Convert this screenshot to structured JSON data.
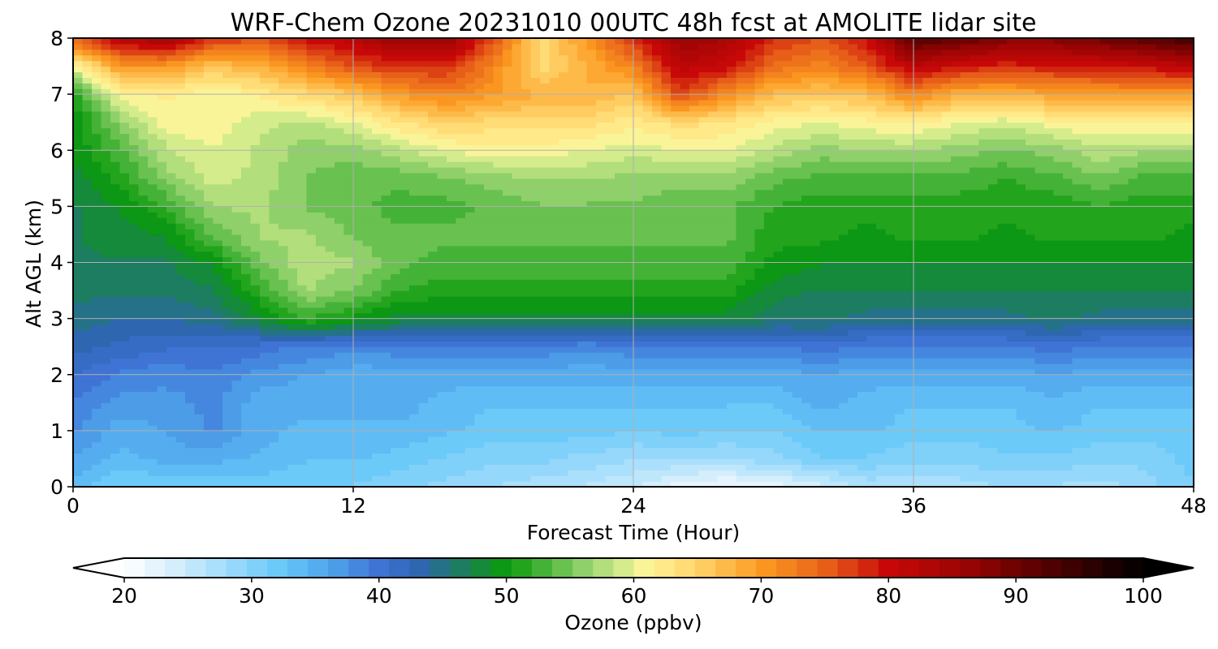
{
  "chart_data": {
    "type": "heatmap",
    "title": "WRF-Chem Ozone  20231010 00UTC 48h fcst at AMOLITE lidar site",
    "xlabel": "Forecast Time (Hour)",
    "ylabel": "Alt AGL (km)",
    "xlim": [
      0,
      48
    ],
    "ylim": [
      0,
      8
    ],
    "xticks": [
      0,
      12,
      24,
      36,
      48
    ],
    "yticks": [
      0,
      1,
      2,
      3,
      4,
      5,
      6,
      7,
      8
    ],
    "grid": true,
    "x_hours": [
      0,
      2,
      4,
      6,
      8,
      10,
      12,
      14,
      16,
      18,
      20,
      22,
      24,
      26,
      28,
      30,
      32,
      34,
      36,
      38,
      40,
      42,
      44,
      46,
      48
    ],
    "z_km": [
      0,
      0.5,
      1,
      1.5,
      2,
      2.5,
      3,
      3.5,
      4,
      4.5,
      5,
      5.5,
      6,
      6.5,
      7,
      7.5,
      8
    ],
    "ozone_ppbv": [
      [
        34,
        31,
        31,
        31,
        32,
        31,
        31,
        30,
        29,
        28,
        27,
        26,
        25,
        22,
        21,
        22,
        24,
        27,
        26,
        27,
        28,
        28,
        27,
        29,
        31
      ],
      [
        36,
        34,
        35,
        35,
        34,
        33,
        33,
        32,
        31,
        30,
        30,
        29,
        28,
        28,
        28,
        29,
        31,
        31,
        30,
        30,
        31,
        31,
        30,
        30,
        32
      ],
      [
        38,
        35,
        36,
        38,
        35,
        34,
        34,
        34,
        33,
        32,
        32,
        32,
        31,
        32,
        31,
        31,
        33,
        33,
        32,
        32,
        32,
        33,
        32,
        32,
        32
      ],
      [
        39,
        37,
        37,
        38,
        35,
        35,
        35,
        35,
        34,
        33,
        33,
        33,
        33,
        33,
        33,
        33,
        35,
        34,
        33,
        33,
        33,
        34,
        33,
        33,
        33
      ],
      [
        41,
        39,
        38,
        39,
        37,
        36,
        35,
        35,
        35,
        35,
        35,
        35,
        35,
        35,
        35,
        35,
        36,
        35,
        35,
        35,
        35,
        36,
        35,
        35,
        35
      ],
      [
        43,
        42,
        41,
        41,
        40,
        39,
        38,
        39,
        39,
        39,
        39,
        38,
        39,
        39,
        39,
        39,
        40,
        39,
        39,
        39,
        39,
        40,
        39,
        39,
        39
      ],
      [
        45,
        44,
        44,
        45,
        48,
        52,
        50,
        48,
        48,
        48,
        48,
        48,
        48,
        48,
        48,
        46,
        46,
        45,
        45,
        45,
        45,
        46,
        45,
        45,
        45
      ],
      [
        46,
        46,
        46,
        47,
        52,
        57,
        55,
        52,
        51,
        51,
        51,
        51,
        51,
        51,
        51,
        48,
        47,
        47,
        47,
        47,
        47,
        47,
        47,
        47,
        47
      ],
      [
        47,
        47,
        47,
        49,
        55,
        58,
        57,
        54,
        53,
        53,
        53,
        53,
        53,
        53,
        53,
        50,
        49,
        49,
        49,
        49,
        49,
        49,
        49,
        49,
        49
      ],
      [
        47,
        48,
        49,
        54,
        57,
        57,
        55,
        54,
        54,
        54,
        54,
        54,
        54,
        54,
        54,
        51,
        51,
        50,
        51,
        51,
        50,
        51,
        51,
        51,
        50
      ],
      [
        47,
        49,
        52,
        57,
        57,
        55,
        54,
        53,
        53,
        54,
        55,
        55,
        55,
        54,
        54,
        52,
        51,
        51,
        51,
        51,
        51,
        51,
        52,
        51,
        51
      ],
      [
        48,
        51,
        56,
        59,
        58,
        55,
        54,
        54,
        55,
        56,
        57,
        57,
        56,
        56,
        56,
        54,
        53,
        53,
        53,
        53,
        52,
        53,
        55,
        53,
        53
      ],
      [
        49,
        53,
        58,
        60,
        58,
        56,
        56,
        58,
        60,
        61,
        61,
        60,
        59,
        60,
        60,
        58,
        56,
        57,
        57,
        56,
        55,
        56,
        58,
        57,
        57
      ],
      [
        49,
        56,
        61,
        61,
        59,
        58,
        60,
        63,
        65,
        64,
        64,
        64,
        62,
        64,
        63,
        61,
        60,
        61,
        62,
        60,
        59,
        61,
        62,
        62,
        62
      ],
      [
        51,
        61,
        62,
        60,
        62,
        64,
        66,
        70,
        72,
        70,
        68,
        68,
        66,
        77,
        71,
        67,
        66,
        67,
        72,
        68,
        68,
        69,
        70,
        70,
        70
      ],
      [
        60,
        70,
        70,
        66,
        68,
        72,
        76,
        78,
        78,
        72,
        64,
        68,
        72,
        82,
        80,
        74,
        72,
        75,
        82,
        79,
        78,
        79,
        79,
        80,
        82
      ],
      [
        75,
        82,
        85,
        78,
        76,
        80,
        82,
        86,
        86,
        76,
        64,
        70,
        78,
        86,
        84,
        78,
        76,
        80,
        92,
        91,
        88,
        88,
        90,
        92,
        94
      ]
    ],
    "colorbar": {
      "label": "Ozone  (ppbv)",
      "min": 20,
      "max": 100,
      "ticks": [
        20,
        30,
        40,
        50,
        60,
        70,
        80,
        90,
        100
      ],
      "tick_labels": [
        "20",
        "30",
        "40",
        "50",
        "60",
        "70",
        "80",
        "90",
        "100"
      ],
      "extend": "both",
      "colormap_stops": [
        [
          20,
          "#ffffff"
        ],
        [
          24,
          "#d5eefc"
        ],
        [
          28,
          "#9fdcfb"
        ],
        [
          32,
          "#6ccaf9"
        ],
        [
          36,
          "#4fa6ec"
        ],
        [
          40,
          "#3f73d4"
        ],
        [
          43,
          "#2f66b5"
        ],
        [
          46,
          "#1e7a6a"
        ],
        [
          50,
          "#0a9a0a"
        ],
        [
          53,
          "#48b43a"
        ],
        [
          56,
          "#8fd06a"
        ],
        [
          59,
          "#d0eb8a"
        ],
        [
          61,
          "#fff59a"
        ],
        [
          65,
          "#ffd36a"
        ],
        [
          70,
          "#fc9a20"
        ],
        [
          75,
          "#e8621a"
        ],
        [
          80,
          "#c80808"
        ],
        [
          86,
          "#9a0404"
        ],
        [
          92,
          "#580101"
        ],
        [
          100,
          "#000000"
        ]
      ],
      "under_color": "#ffffff",
      "over_color": "#000000"
    }
  }
}
